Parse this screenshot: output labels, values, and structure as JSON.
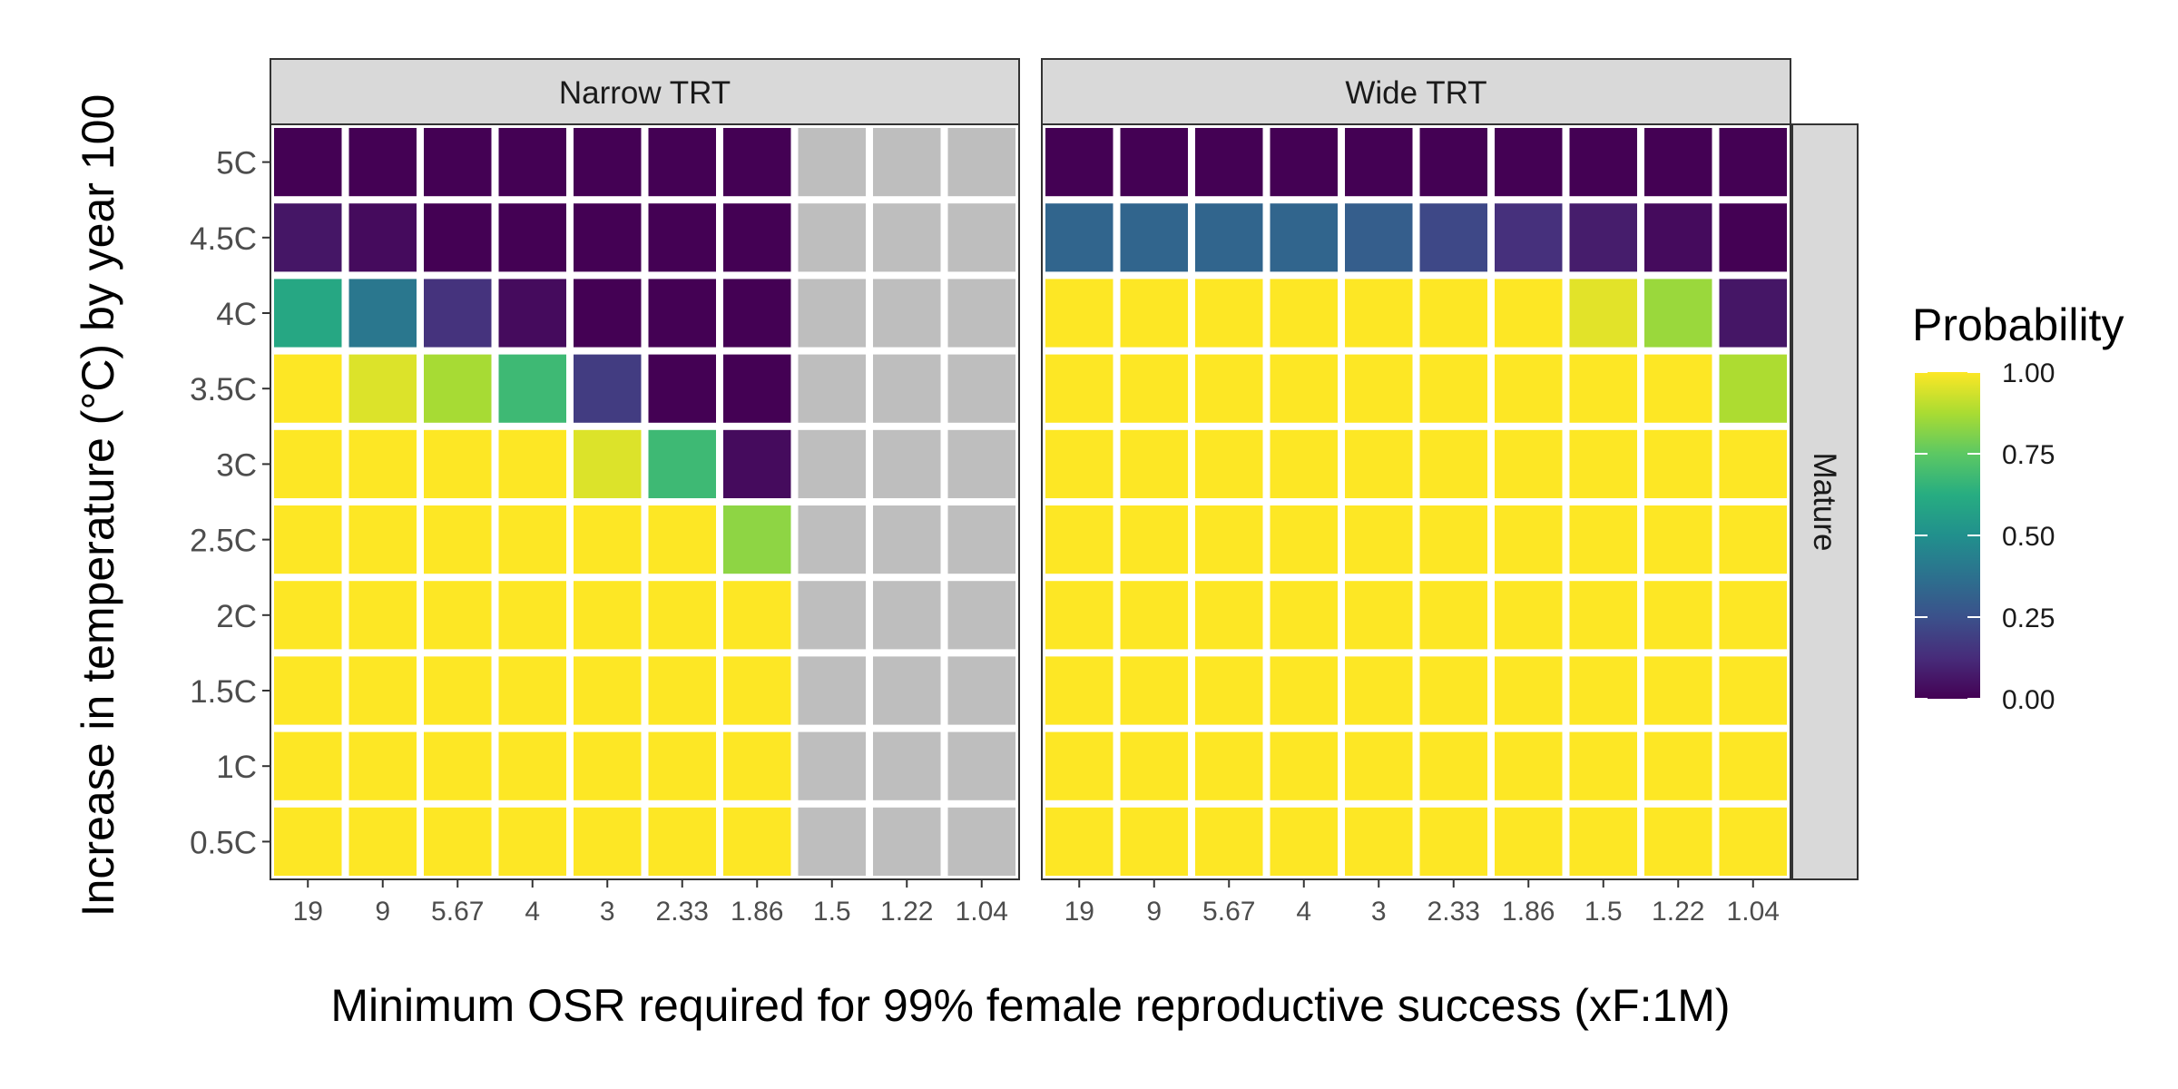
{
  "chart_data": {
    "type": "heatmap",
    "xlabel": "Minimum OSR required for 99% female reproductive success (xF:1M)",
    "ylabel": "Increase in temperature (°C) by year 100",
    "x_categories": [
      "19",
      "9",
      "5.67",
      "4",
      "3",
      "2.33",
      "1.86",
      "1.5",
      "1.22",
      "1.04"
    ],
    "y_categories": [
      "0.5C",
      "1C",
      "1.5C",
      "2C",
      "2.5C",
      "3C",
      "3.5C",
      "4C",
      "4.5C",
      "5C"
    ],
    "row_facet_label": "Mature",
    "na_color": "#bebebe",
    "colorscale": "viridis",
    "legend": {
      "title": "Probability",
      "ticks": [
        "0.00",
        "0.25",
        "0.50",
        "0.75",
        "1.00"
      ],
      "tick_values": [
        0,
        0.25,
        0.5,
        0.75,
        1.0
      ],
      "placement": "right"
    },
    "panels": [
      {
        "title": "Narrow TRT",
        "values": [
          [
            1,
            1,
            1,
            1,
            1,
            1,
            1,
            null,
            null,
            null
          ],
          [
            1,
            1,
            1,
            1,
            1,
            1,
            1,
            null,
            null,
            null
          ],
          [
            1,
            1,
            1,
            1,
            1,
            1,
            1,
            null,
            null,
            null
          ],
          [
            1,
            1,
            1,
            1,
            1,
            1,
            1,
            null,
            null,
            null
          ],
          [
            1,
            1,
            1,
            1,
            1,
            1,
            0.83,
            null,
            null,
            null
          ],
          [
            1,
            1,
            1,
            1,
            0.95,
            0.68,
            0.03,
            null,
            null,
            null
          ],
          [
            1,
            0.95,
            0.87,
            0.68,
            0.18,
            0.0,
            0.0,
            null,
            null,
            null
          ],
          [
            0.6,
            0.4,
            0.15,
            0.03,
            0.0,
            0.0,
            0.0,
            null,
            null,
            null
          ],
          [
            0.06,
            0.03,
            0.0,
            0.0,
            0.0,
            0.0,
            0.0,
            null,
            null,
            null
          ],
          [
            0.0,
            0.0,
            0.0,
            0.0,
            0.0,
            0.0,
            0.0,
            null,
            null,
            null
          ]
        ]
      },
      {
        "title": "Wide TRT",
        "values": [
          [
            1,
            1,
            1,
            1,
            1,
            1,
            1,
            1,
            1,
            1
          ],
          [
            1,
            1,
            1,
            1,
            1,
            1,
            1,
            1,
            1,
            1
          ],
          [
            1,
            1,
            1,
            1,
            1,
            1,
            1,
            1,
            1,
            1
          ],
          [
            1,
            1,
            1,
            1,
            1,
            1,
            1,
            1,
            1,
            1
          ],
          [
            1,
            1,
            1,
            1,
            1,
            1,
            1,
            1,
            1,
            1
          ],
          [
            1,
            1,
            1,
            1,
            1,
            1,
            1,
            1,
            1,
            1
          ],
          [
            1,
            1,
            1,
            1,
            1,
            1,
            1,
            1,
            1,
            0.88
          ],
          [
            1,
            1,
            1,
            1,
            1,
            1,
            1,
            0.96,
            0.85,
            0.06
          ],
          [
            0.33,
            0.33,
            0.33,
            0.33,
            0.3,
            0.22,
            0.14,
            0.08,
            0.03,
            0.0
          ],
          [
            0.0,
            0.0,
            0.0,
            0.0,
            0.0,
            0.0,
            0.0,
            0.0,
            0.0,
            0.0
          ]
        ]
      }
    ]
  }
}
